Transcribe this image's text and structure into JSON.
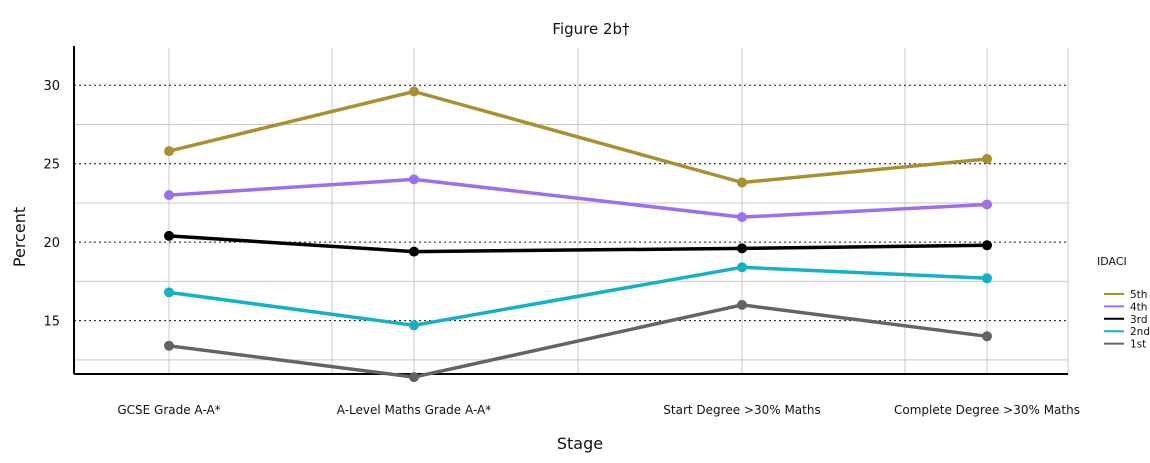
{
  "chart_data": {
    "type": "line",
    "title": "Figure 2b†",
    "xlabel": "Stage",
    "ylabel": "Percent",
    "categories": [
      "GCSE Grade A-A*",
      "A-Level Maths Grade A-A*",
      "Start Degree >30% Maths",
      "Complete Degree >30% Maths"
    ],
    "ylim": [
      11.6,
      32.5
    ],
    "yticks": [
      15,
      20,
      25,
      30
    ],
    "grid": true,
    "legend": {
      "title": "IDACI",
      "position": "right"
    },
    "series": [
      {
        "name": "5th",
        "color": "#a89030",
        "values": [
          25.8,
          29.6,
          23.8,
          25.3
        ]
      },
      {
        "name": "4th",
        "color": "#9b6ff0",
        "values": [
          23.0,
          24.0,
          21.6,
          22.4
        ]
      },
      {
        "name": "3rd",
        "color": "#000000",
        "values": [
          20.4,
          19.4,
          19.6,
          19.8
        ]
      },
      {
        "name": "2nd",
        "color": "#14b0c8",
        "values": [
          16.8,
          14.7,
          18.4,
          17.7
        ]
      },
      {
        "name": "1st",
        "color": "#646464",
        "values": [
          13.4,
          11.4,
          16.0,
          14.0
        ]
      }
    ]
  }
}
